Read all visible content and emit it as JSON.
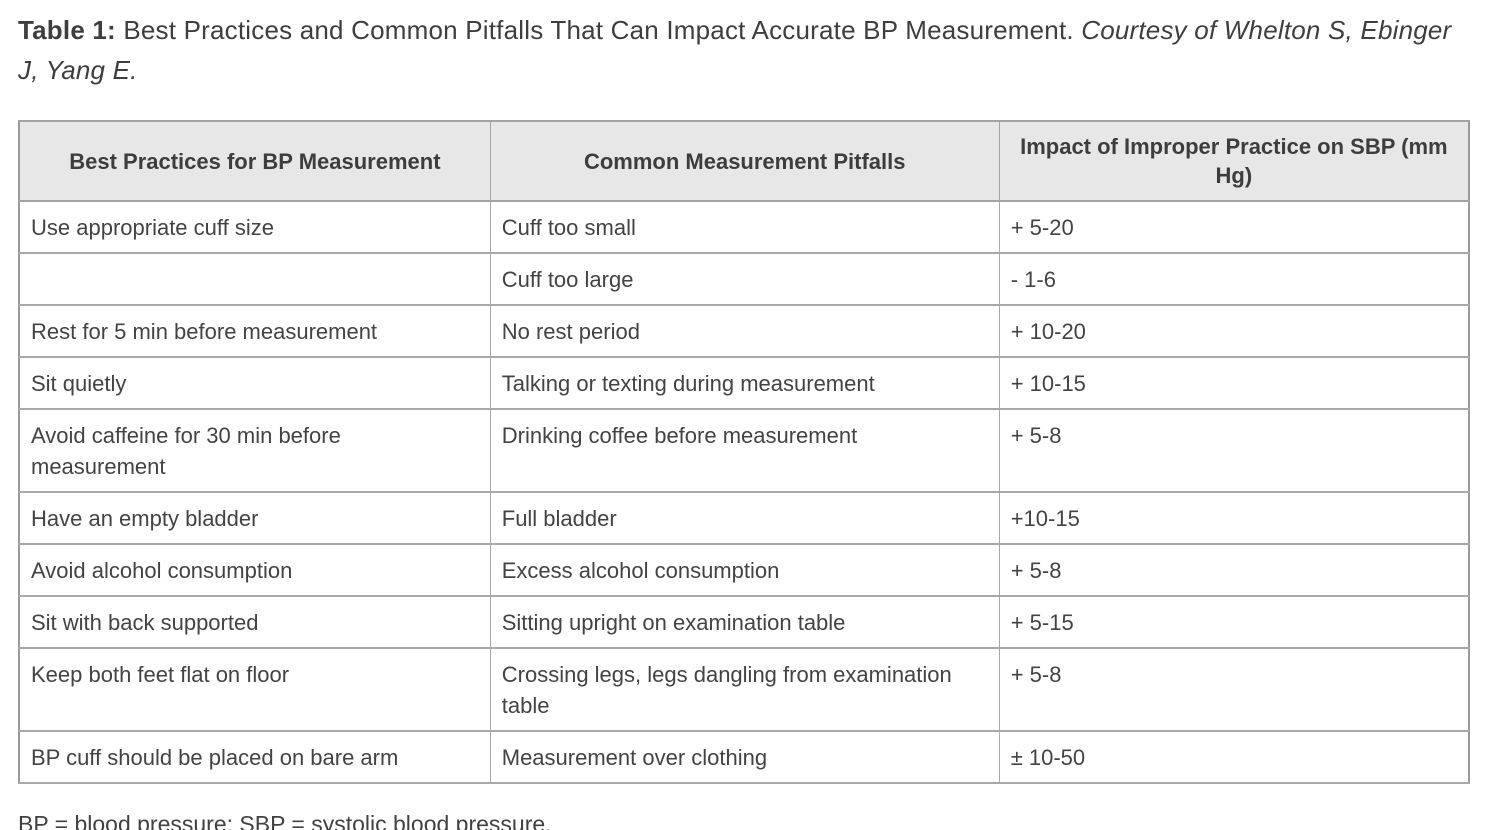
{
  "caption": {
    "label": "Table 1:",
    "text": " Best Practices and Common Pitfalls That Can Impact Accurate BP Measurement. ",
    "courtesy": "Courtesy of Whelton S, Ebinger J, Yang E."
  },
  "table": {
    "headers": [
      "Best Practices for BP Measurement",
      "Common Measurement Pitfalls",
      "Impact of Improper Practice on SBP (mm Hg)"
    ],
    "rows": [
      [
        "Use appropriate cuff size",
        "Cuff too small",
        "+ 5-20"
      ],
      [
        "",
        "Cuff too large",
        "- 1-6"
      ],
      [
        "Rest for 5 min before measurement",
        "No rest period",
        "+ 10-20"
      ],
      [
        "Sit quietly",
        "Talking or texting during measurement",
        "+ 10-15"
      ],
      [
        "Avoid caffeine for 30 min before measurement",
        "Drinking coffee before measurement",
        "+ 5-8"
      ],
      [
        "Have an empty bladder",
        "Full bladder",
        "+10-15"
      ],
      [
        "Avoid alcohol consumption",
        "Excess alcohol consumption",
        "+ 5-8"
      ],
      [
        "Sit with back supported",
        "Sitting upright on examination table",
        "+ 5-15"
      ],
      [
        "Keep both feet flat on floor",
        "Crossing legs, legs dangling from examination table",
        "+ 5-8"
      ],
      [
        "BP cuff should be placed on bare arm",
        "Measurement over clothing",
        "± 10-50"
      ]
    ]
  },
  "footnote": "BP = blood pressure; SBP = systolic blood pressure.",
  "colors": {
    "header_background": "#e7e7e7",
    "border": "#a3a3a3",
    "text": "#414141"
  }
}
